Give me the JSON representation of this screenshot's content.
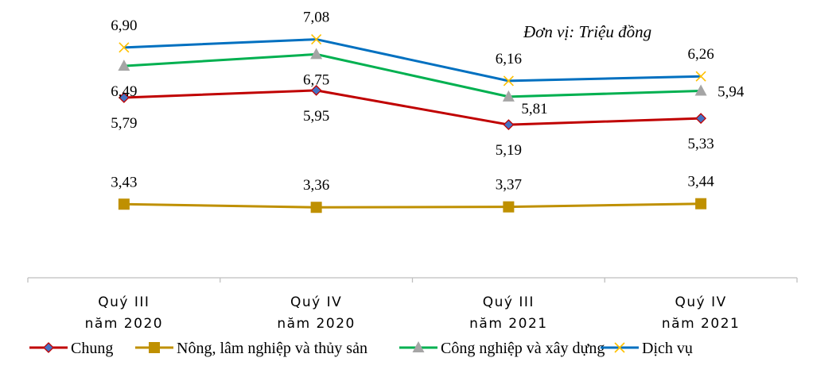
{
  "chart_data": {
    "type": "line",
    "unit_note": "Đơn vị: Triệu đồng",
    "categories": [
      [
        "Quý III",
        "năm 2020"
      ],
      [
        "Quý IV",
        "năm 2020"
      ],
      [
        "Quý III",
        "năm 2021"
      ],
      [
        "Quý IV",
        "năm 2021"
      ]
    ],
    "series": [
      {
        "name": "Chung",
        "values": [
          5.79,
          5.95,
          5.19,
          5.33
        ],
        "labels": [
          "5,79",
          "5,95",
          "5,19",
          "5,33"
        ],
        "color": "#C00000",
        "marker": "diamond",
        "label_pos": "below"
      },
      {
        "name": "Nông, lâm nghiệp và thủy sản",
        "values": [
          3.43,
          3.36,
          3.37,
          3.44
        ],
        "labels": [
          "3,43",
          "3,36",
          "3,37",
          "3,44"
        ],
        "color": "#BF9000",
        "marker": "square",
        "label_pos": "above"
      },
      {
        "name": "Công nghiệp và xây dựng",
        "values": [
          6.49,
          6.75,
          5.81,
          5.94
        ],
        "labels": [
          "6,49",
          "6,75",
          "5,81",
          "5,94"
        ],
        "color": "#00B050",
        "marker": "triangle",
        "label_pos": "below"
      },
      {
        "name": "Dịch vụ",
        "values": [
          6.9,
          7.08,
          6.16,
          6.26
        ],
        "labels": [
          "6,90",
          "7,08",
          "6,16",
          "6,26"
        ],
        "color": "#0070C0",
        "marker": "x",
        "label_pos": "above"
      }
    ],
    "ylim": [
      1.8,
      7.6
    ],
    "grid": false,
    "legend_position": "bottom"
  }
}
